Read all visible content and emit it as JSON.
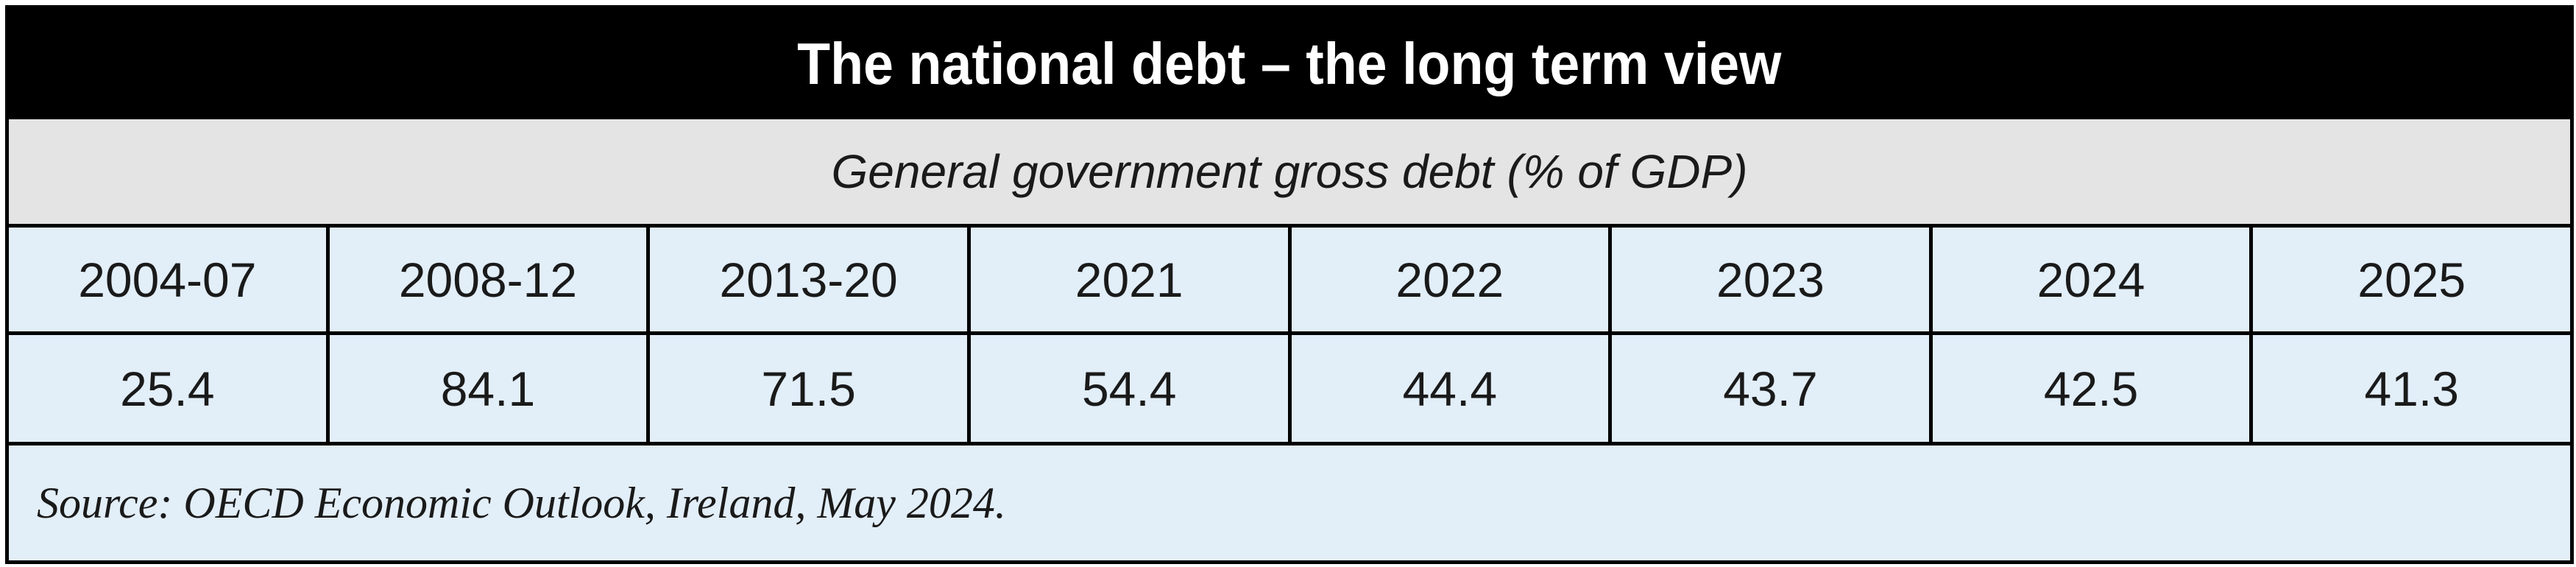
{
  "chart_data": {
    "type": "table",
    "title": "The national debt – the long term view",
    "subtitle": "General government gross debt (% of GDP)",
    "categories": [
      "2004-07",
      "2008-12",
      "2013-20",
      "2021",
      "2022",
      "2023",
      "2024",
      "2025"
    ],
    "values": [
      "25.4",
      "84.1",
      "71.5",
      "54.4",
      "44.4",
      "43.7",
      "42.5",
      "41.3"
    ],
    "source": "Source: OECD Economic Outlook, Ireland, May 2024."
  },
  "colors": {
    "title_background": "#000000",
    "title_text": "#ffffff",
    "subtitle_background": "#e4e4e4",
    "table_background": "#e2eef8",
    "border": "#000000"
  }
}
